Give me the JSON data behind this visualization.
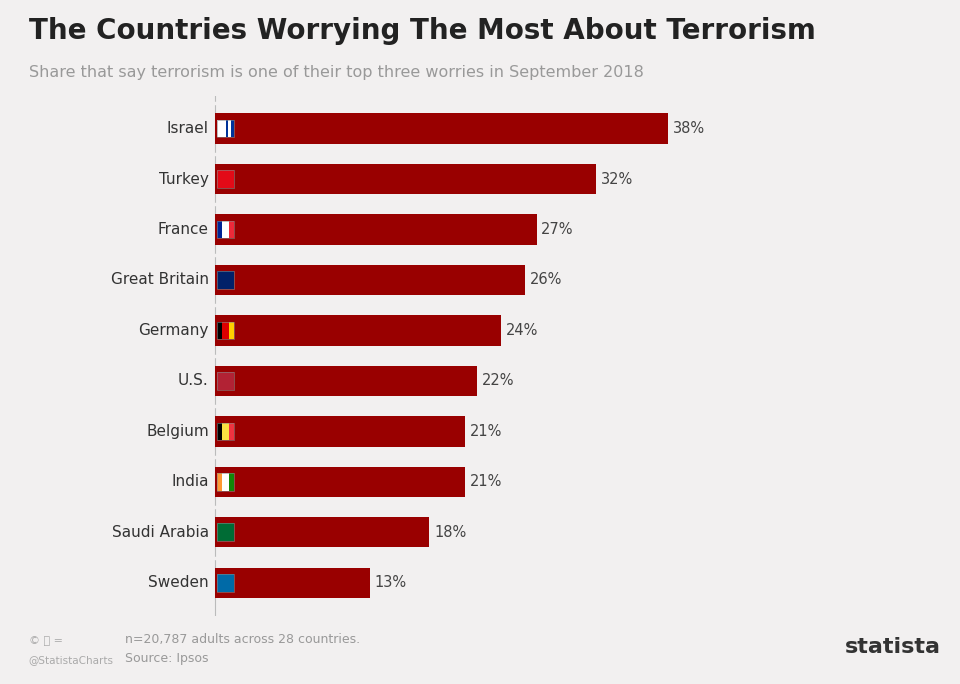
{
  "title": "The Countries Worrying The Most About Terrorism",
  "subtitle": "Share that say terrorism is one of their top three worries in September 2018",
  "countries": [
    "Israel",
    "Turkey",
    "France",
    "Great Britain",
    "Germany",
    "U.S.",
    "Belgium",
    "India",
    "Saudi Arabia",
    "Sweden"
  ],
  "values": [
    38,
    32,
    27,
    26,
    24,
    22,
    21,
    21,
    18,
    13
  ],
  "labels": [
    "38%",
    "32%",
    "27%",
    "26%",
    "24%",
    "22%",
    "21%",
    "21%",
    "18%",
    "13%"
  ],
  "bar_color": "#990000",
  "background_color": "#f2f0f0",
  "title_color": "#222222",
  "subtitle_color": "#999999",
  "label_color": "#444444",
  "country_label_color": "#333333",
  "footer_line1": "n=20,787 adults across 28 countries.",
  "footer_line2": "Source: Ipsos",
  "xlim_max": 44,
  "bar_height": 0.6
}
